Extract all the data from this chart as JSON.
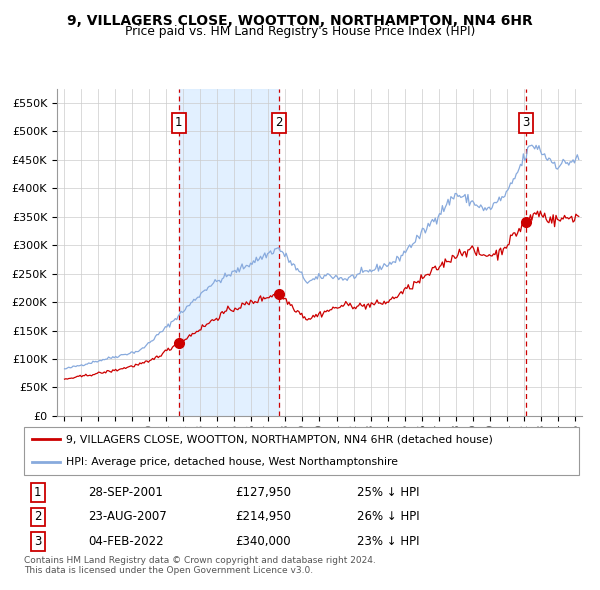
{
  "title1": "9, VILLAGERS CLOSE, WOOTTON, NORTHAMPTON, NN4 6HR",
  "title2": "Price paid vs. HM Land Registry's House Price Index (HPI)",
  "legend_label1": "9, VILLAGERS CLOSE, WOOTTON, NORTHAMPTON, NN4 6HR (detached house)",
  "legend_label2": "HPI: Average price, detached house, West Northamptonshire",
  "red_color": "#cc0000",
  "blue_color": "#88aadd",
  "bg_shade_color": "#ddeeff",
  "sale_year_floats": [
    2001.75,
    2007.64,
    2022.09
  ],
  "sale_prices": [
    127950,
    214950,
    340000
  ],
  "sale_labels": [
    "1",
    "2",
    "3"
  ],
  "table_rows": [
    [
      "1",
      "28-SEP-2001",
      "£127,950",
      "25% ↓ HPI"
    ],
    [
      "2",
      "23-AUG-2007",
      "£214,950",
      "26% ↓ HPI"
    ],
    [
      "3",
      "04-FEB-2022",
      "£340,000",
      "23% ↓ HPI"
    ]
  ],
  "footer": "Contains HM Land Registry data © Crown copyright and database right 2024.\nThis data is licensed under the Open Government Licence v3.0.",
  "ylim": [
    0,
    575000
  ],
  "yticks": [
    0,
    50000,
    100000,
    150000,
    200000,
    250000,
    300000,
    350000,
    400000,
    450000,
    500000,
    550000
  ],
  "ytick_labels": [
    "£0",
    "£50K",
    "£100K",
    "£150K",
    "£200K",
    "£250K",
    "£300K",
    "£350K",
    "£400K",
    "£450K",
    "£500K",
    "£550K"
  ],
  "xlim_low": 1994.6,
  "xlim_high": 2025.4
}
